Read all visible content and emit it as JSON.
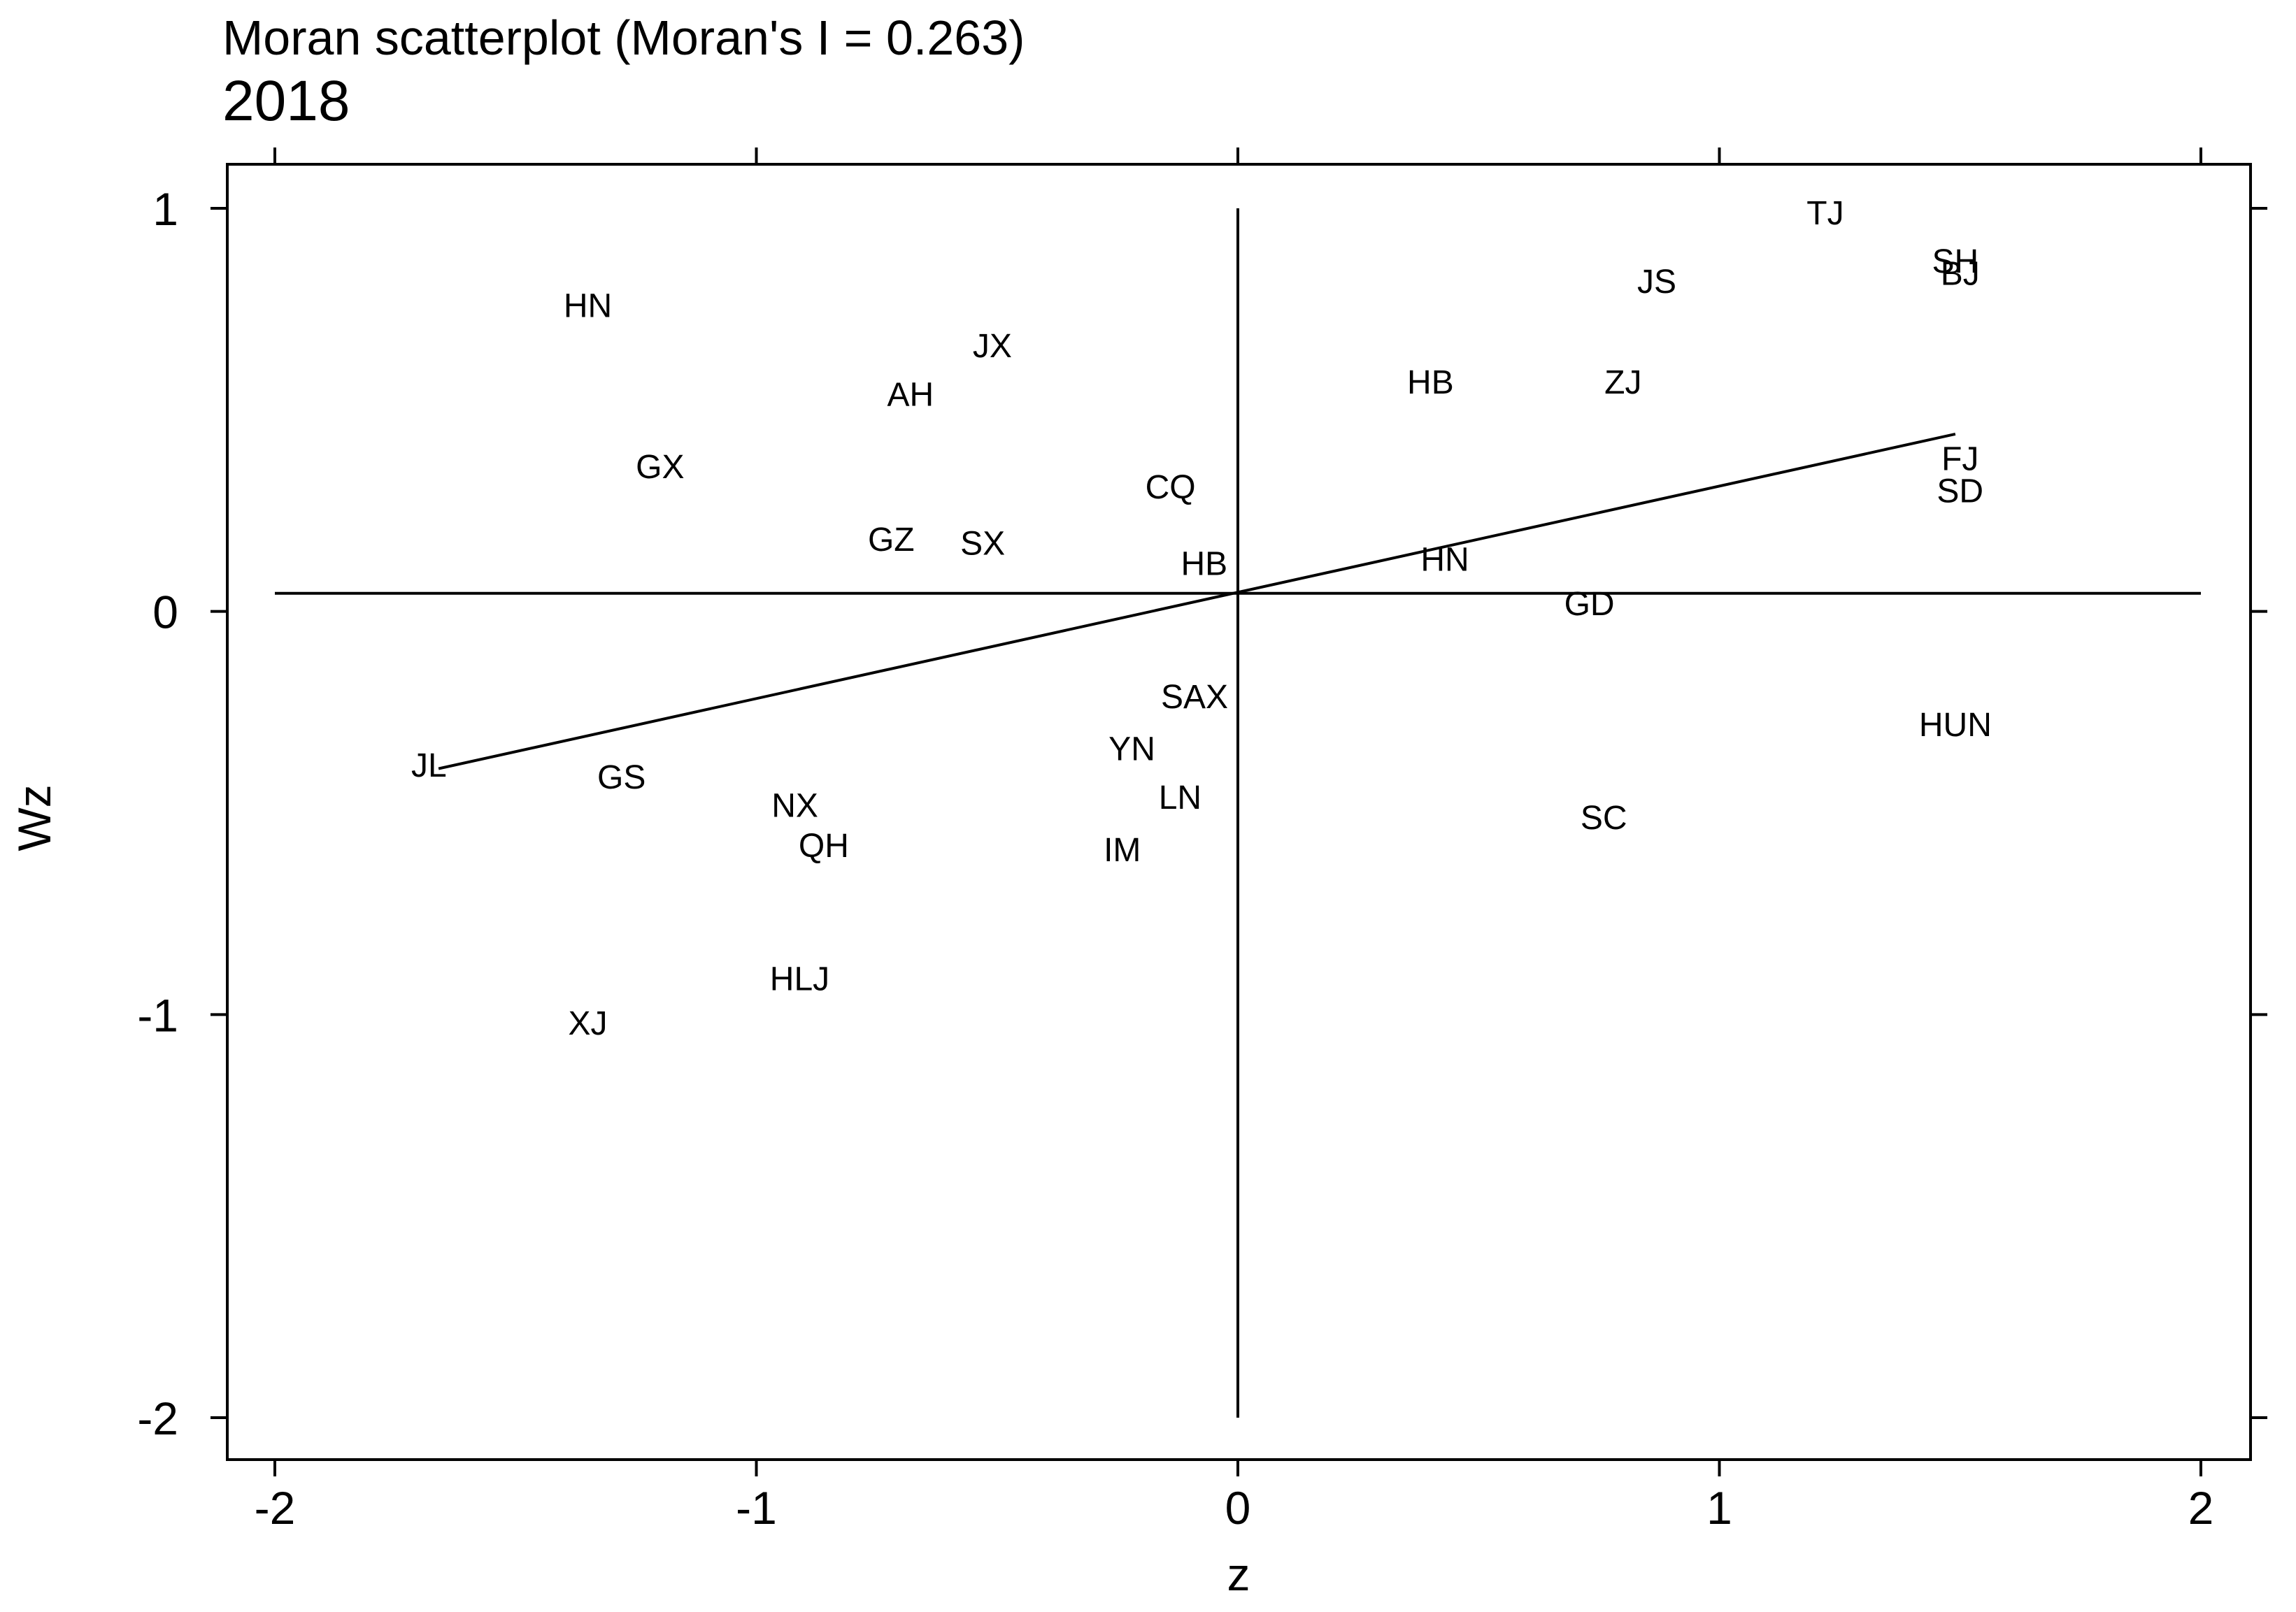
{
  "chart_data": {
    "type": "scatter",
    "title": "Moran scatterplot (Moran's I = 0.263)",
    "subtitle": "2018",
    "xlabel": "z",
    "ylabel": "Wz",
    "xlim": [
      -2.1,
      2.1
    ],
    "ylim": [
      -2.1,
      1.1
    ],
    "x_ticks": [
      -2,
      -1,
      0,
      1,
      2
    ],
    "x_tick_labels": [
      "-2",
      "-1",
      "0",
      "1",
      "2"
    ],
    "y_ticks": [
      -2,
      -1,
      0,
      1
    ],
    "y_tick_labels": [
      "-2",
      "-1",
      "0",
      "1"
    ],
    "mean_lines": {
      "x": 0,
      "y": 0.045
    },
    "regression_line": {
      "x": [
        -1.66,
        1.49
      ],
      "y": [
        -0.39,
        0.44
      ]
    },
    "points": [
      {
        "label": "HN",
        "x": -1.35,
        "y": 0.76
      },
      {
        "label": "JX",
        "x": -0.51,
        "y": 0.66
      },
      {
        "label": "AH",
        "x": -0.68,
        "y": 0.54
      },
      {
        "label": "GX",
        "x": -1.2,
        "y": 0.36
      },
      {
        "label": "CQ",
        "x": -0.14,
        "y": 0.31
      },
      {
        "label": "GZ",
        "x": -0.72,
        "y": 0.18
      },
      {
        "label": "SX",
        "x": -0.53,
        "y": 0.17
      },
      {
        "label": "HB",
        "x": -0.07,
        "y": 0.12
      },
      {
        "label": "TJ",
        "x": 1.22,
        "y": 0.99
      },
      {
        "label": "SH",
        "x": 1.49,
        "y": 0.87
      },
      {
        "label": "BJ",
        "x": 1.5,
        "y": 0.84
      },
      {
        "label": "JS",
        "x": 0.87,
        "y": 0.82
      },
      {
        "label": "HB",
        "x": 0.4,
        "y": 0.57
      },
      {
        "label": "ZJ",
        "x": 0.8,
        "y": 0.57
      },
      {
        "label": "FJ",
        "x": 1.5,
        "y": 0.38
      },
      {
        "label": "SD",
        "x": 1.5,
        "y": 0.3
      },
      {
        "label": "HN",
        "x": 0.43,
        "y": 0.13
      },
      {
        "label": "GD",
        "x": 0.73,
        "y": 0.02
      },
      {
        "label": "SAX",
        "x": -0.09,
        "y": -0.21
      },
      {
        "label": "YN",
        "x": -0.22,
        "y": -0.34
      },
      {
        "label": "LN",
        "x": -0.12,
        "y": -0.46
      },
      {
        "label": "IM",
        "x": -0.24,
        "y": -0.59
      },
      {
        "label": "HUN",
        "x": 1.49,
        "y": -0.28
      },
      {
        "label": "SC",
        "x": 0.76,
        "y": -0.51
      },
      {
        "label": "JL",
        "x": -1.68,
        "y": -0.38
      },
      {
        "label": "GS",
        "x": -1.28,
        "y": -0.41
      },
      {
        "label": "NX",
        "x": -0.92,
        "y": -0.48
      },
      {
        "label": "QH",
        "x": -0.86,
        "y": -0.58
      },
      {
        "label": "HLJ",
        "x": -0.91,
        "y": -0.91
      },
      {
        "label": "XJ",
        "x": -1.35,
        "y": -1.02
      }
    ]
  }
}
